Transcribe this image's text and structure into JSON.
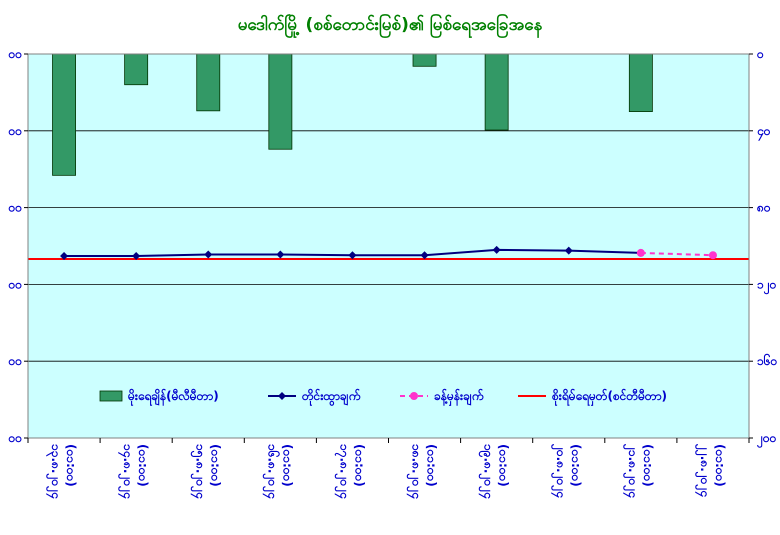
{
  "chart_data": {
    "type": "bar+line",
    "title": "မဒေါက်မြို့ (စစ်တောင်းမြစ်)၏ မြစ်ရေအခြေအနေ",
    "categories": [
      "၁၃.၈.၂၀၂၄ (၀၁:၀၀)",
      "၁၄.၈.၂၀၂၄ (၀၁:၀၀)",
      "၁၅.၈.၂၀၂၄ (၀၁:၀၀)",
      "၁၆.၈.၂၀၂၄ (၀၁:၀၀)",
      "၁၇.၈.၂၀၂၄ (၀၁:၀၀)",
      "၁၈.၈.၂၀၂၄ (၀၁:၀၀)",
      "၁၉.၈.၂၀၂၄ (၀၁:၀၀)",
      "၂၀.၈.၂၀၂၄ (၀၁:၀၀)",
      "၂၁.၈.၂၀၂၄ (၀၁:၀၀)",
      "၂၂.၈.၂၀၂၄ (၀၁:၀၀)"
    ],
    "y_left": {
      "min": 500,
      "max": 0,
      "inverted": true,
      "ticks": [
        0,
        100,
        200,
        300,
        400,
        500
      ],
      "tick_labels": [
        "၀၀",
        "၀၀",
        "၀၀",
        "၀၀",
        "၀၀",
        "၀၀"
      ]
    },
    "y_right": {
      "min": 0,
      "max": 500,
      "ticks": [
        0,
        100,
        200,
        300,
        400,
        500
      ],
      "tick_labels": [
        "၀",
        "၄၀",
        "၈၀",
        "၁၂၀",
        "၁၆၀",
        "၂၀၀"
      ]
    },
    "grid": true,
    "plot_background": "#ccffff",
    "legend_position": "lower-center",
    "series": [
      {
        "name": "မိုးရေချိန်(မီလီမီတာ)",
        "kind": "bar",
        "axis": "left",
        "color": "#339966",
        "border": "#003300",
        "values": [
          158,
          40,
          74,
          124,
          0,
          16,
          99,
          0,
          75,
          0
        ]
      },
      {
        "name": "တိုင်းထွာချက်",
        "kind": "line",
        "axis": "right",
        "color": "#000080",
        "marker": "diamond",
        "values": [
          263,
          263,
          261,
          261,
          262,
          262,
          255,
          256,
          259,
          null
        ]
      },
      {
        "name": "ခန့်မှန်းချက်",
        "kind": "line",
        "axis": "right",
        "color": "#ff33cc",
        "dashed": true,
        "marker": "circle",
        "values": [
          null,
          null,
          null,
          null,
          null,
          null,
          null,
          null,
          259,
          262
        ]
      },
      {
        "name": "စိုးရိမ်ရေမှတ်(စင်တီမီတာ)",
        "kind": "line",
        "axis": "right",
        "color": "#ff0000",
        "values": [
          267,
          267,
          267,
          267,
          267,
          267,
          267,
          267,
          267,
          267
        ]
      }
    ]
  }
}
